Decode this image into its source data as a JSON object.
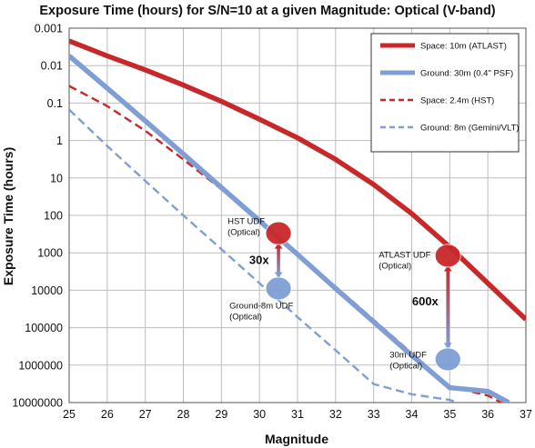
{
  "chart_data": {
    "type": "line",
    "title": "Exposure Time (hours) for S/N=10 at a given Magnitude: Optical (V-band)",
    "xlabel": "Magnitude",
    "ylabel": "Exposure Time (hours)",
    "xlim": [
      25,
      37
    ],
    "x_ticks": [
      25,
      26,
      27,
      28,
      29,
      30,
      31,
      32,
      33,
      34,
      35,
      36,
      37
    ],
    "y_scale": "log",
    "y_inverted": true,
    "ylim": [
      0.001,
      10000000
    ],
    "y_tick_values": [
      0.001,
      0.01,
      0.1,
      1,
      10,
      100,
      1000,
      10000,
      100000,
      1000000,
      10000000
    ],
    "y_tick_labels": [
      "0.001",
      "0.01",
      "0.1",
      "1",
      "10",
      "100",
      "1000",
      "10000",
      "100000",
      "1000000",
      "10000000"
    ],
    "grid": true,
    "legend_position": "top-right",
    "series": [
      {
        "name": "Space: 10m (ATLAST)",
        "color": "#c8282a",
        "style": "solid",
        "width": "thick",
        "x": [
          25,
          26,
          27,
          28,
          29,
          30,
          31,
          32,
          33,
          34,
          35,
          36,
          37
        ],
        "y": [
          0.0022,
          0.0055,
          0.013,
          0.033,
          0.09,
          0.27,
          0.85,
          3.2,
          15,
          90,
          700,
          6500,
          60000
        ]
      },
      {
        "name": "Ground: 30m (0.4\" PSF)",
        "color": "#7f9fd4",
        "style": "solid",
        "width": "thick",
        "x": [
          25,
          26,
          27,
          28,
          29,
          30,
          31,
          32,
          33,
          34,
          35,
          36,
          36.55
        ],
        "y": [
          0.0055,
          0.04,
          0.3,
          2.3,
          18,
          140,
          1100,
          9000,
          70000,
          550000,
          4000000,
          5000000,
          10000000
        ]
      },
      {
        "name": "Space: 2.4m (HST)",
        "color": "#c8282a",
        "style": "dashed",
        "width": "thin",
        "x": [
          25,
          26,
          27,
          28,
          29,
          30,
          31,
          32,
          33,
          34,
          35,
          36,
          36.35
        ],
        "y": [
          0.035,
          0.12,
          0.55,
          3.2,
          20,
          140,
          1050,
          8000,
          62000,
          480000,
          3700000,
          6500000,
          10000000
        ]
      },
      {
        "name": "Ground: 8m (Gemini/VLT)",
        "color": "#7f9fd4",
        "style": "dashed",
        "width": "thin",
        "x": [
          25,
          26,
          27,
          28,
          29,
          30,
          31,
          32,
          33,
          34,
          35,
          35.2
        ],
        "y": [
          0.15,
          1.4,
          12,
          100,
          800,
          6500,
          52000,
          400000,
          3200000,
          6000000,
          8500000,
          10000000
        ]
      }
    ],
    "markers": [
      {
        "x": 30.5,
        "y": 300,
        "color": "#c8282a",
        "label": "HST UDF\n(Optical)"
      },
      {
        "x": 30.5,
        "y": 9000,
        "color": "#7f9fd4",
        "label": "Ground-8m UDF\n(Optical)"
      },
      {
        "x": 34.95,
        "y": 1200,
        "color": "#c8282a",
        "label": "ATLAST UDF\n(Optical)"
      },
      {
        "x": 34.95,
        "y": 700000,
        "color": "#7f9fd4",
        "label": "30m UDF\n(Optical)"
      }
    ],
    "annotations": [
      {
        "text": "30x",
        "x": 30.25,
        "y": 2000
      },
      {
        "text": "600x",
        "x": 34.7,
        "y": 25000
      }
    ]
  }
}
